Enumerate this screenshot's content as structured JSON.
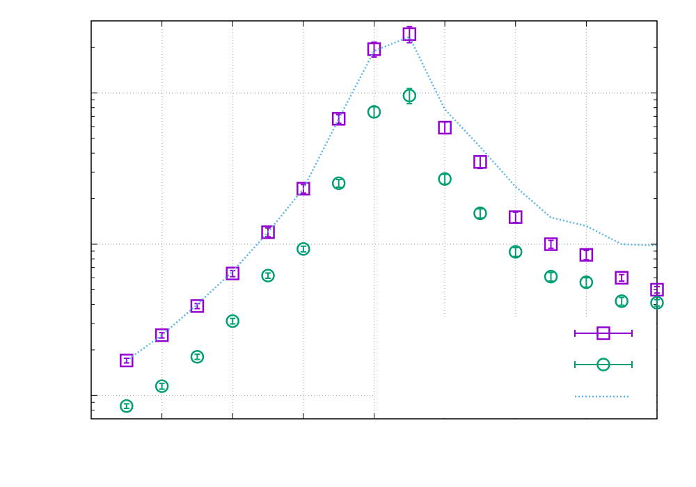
{
  "chart_data": {
    "type": "scatter",
    "title": "",
    "xlabel": "",
    "ylabel": "",
    "y_scale": "log",
    "xlim": [
      0,
      8
    ],
    "ylim": [
      0.0007,
      0.3
    ],
    "grid": true,
    "legend_position": "bottom-right",
    "series": [
      {
        "marker": "square",
        "style": "points-errorbars",
        "color": "#9400d3",
        "x": [
          0.5,
          1.0,
          1.5,
          2.0,
          2.5,
          3.0,
          3.5,
          4.0,
          4.5,
          5.0,
          5.5,
          6.0,
          6.5,
          7.0,
          7.5,
          8.0
        ],
        "y": [
          0.0017,
          0.0025,
          0.0039,
          0.0064,
          0.012,
          0.0233,
          0.0675,
          0.195,
          0.245,
          0.059,
          0.035,
          0.0151,
          0.01,
          0.0085,
          0.006,
          0.005
        ],
        "err": [
          6e-05,
          0.0001,
          0.00015,
          0.0003,
          0.0008,
          0.0015,
          0.0045,
          0.022,
          0.03,
          0.0052,
          0.0033,
          0.0012,
          0.0006,
          0.0006,
          0.0003,
          0.00025
        ]
      },
      {
        "marker": "circle",
        "style": "points-errorbars",
        "color": "#009e73",
        "x": [
          0.5,
          1.0,
          1.5,
          2.0,
          2.5,
          3.0,
          3.5,
          4.0,
          4.5,
          5.0,
          5.5,
          6.0,
          6.5,
          7.0,
          7.5,
          8.0
        ],
        "y": [
          0.00085,
          0.00115,
          0.0018,
          0.0031,
          0.0062,
          0.0093,
          0.0253,
          0.075,
          0.096,
          0.027,
          0.016,
          0.0089,
          0.0061,
          0.0056,
          0.0042,
          0.0041
        ],
        "err": [
          3e-05,
          5e-05,
          7e-05,
          0.00013,
          0.00025,
          0.0004,
          0.0015,
          0.006,
          0.011,
          0.002,
          0.0011,
          0.0006,
          0.0004,
          0.0004,
          0.00025,
          0.0002
        ]
      },
      {
        "marker": "none",
        "style": "dotted-line",
        "color": "#56b4e9",
        "x": [
          0.5,
          1.0,
          1.5,
          2.0,
          2.5,
          3.0,
          3.5,
          4.0,
          4.5,
          5.0,
          5.5,
          6.0,
          6.5,
          7.0,
          7.5,
          8.0
        ],
        "y": [
          0.0017,
          0.0025,
          0.004,
          0.0066,
          0.012,
          0.0233,
          0.0675,
          0.19,
          0.235,
          0.078,
          0.044,
          0.024,
          0.015,
          0.0132,
          0.01,
          0.0098
        ]
      }
    ]
  }
}
